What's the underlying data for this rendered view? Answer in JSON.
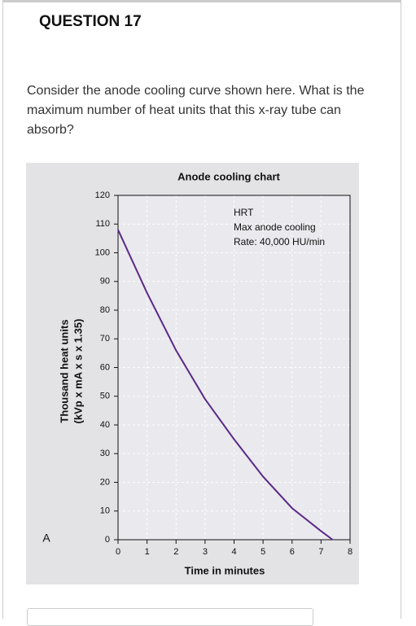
{
  "header": {
    "title": "QUESTION 17"
  },
  "question": {
    "text": "Consider the anode cooling curve shown here. What is the maximum number of heat units that this x-ray tube can absorb?"
  },
  "chart_data": {
    "type": "line",
    "title": "Anode cooling chart",
    "annotations": [
      "HRT",
      "Max anode cooling",
      "Rate: 40,000 HU/min"
    ],
    "panel_label": "A",
    "x_label": "Time in minutes",
    "y_label": [
      "Thousand heat units",
      "(kVp x mA x s x 1.35)"
    ],
    "x": [
      0,
      1,
      2,
      3,
      4,
      5,
      6,
      7,
      7.4
    ],
    "values": [
      108,
      86,
      66,
      49,
      35,
      22,
      11,
      3,
      0
    ],
    "color": "#5b2a86",
    "xlim": [
      0,
      8
    ],
    "xticks": [
      0,
      1,
      2,
      3,
      4,
      5,
      6,
      7,
      8
    ],
    "ylim": [
      0,
      120
    ],
    "yticks": [
      0,
      10,
      20,
      30,
      40,
      50,
      60,
      70,
      80,
      90,
      100,
      110,
      120
    ],
    "grid": true
  }
}
